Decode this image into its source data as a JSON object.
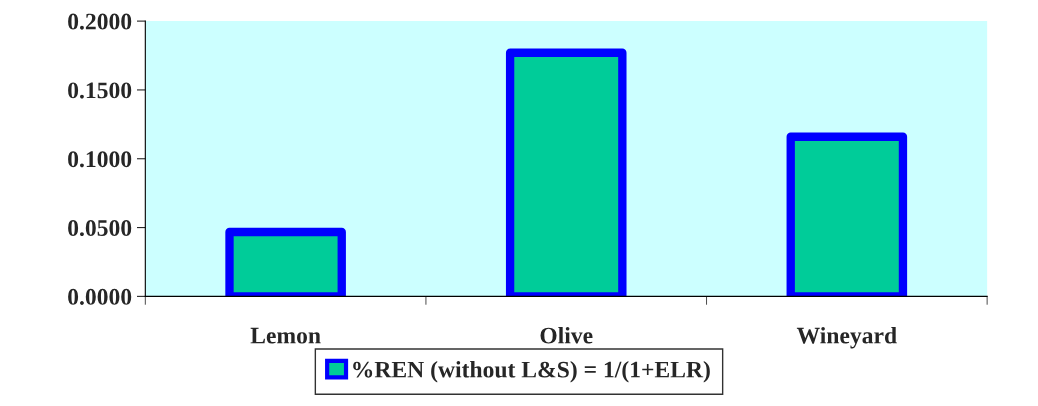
{
  "chart_data": {
    "type": "bar",
    "categories": [
      "Lemon",
      "Olive",
      "Wineyard"
    ],
    "series": [
      {
        "name": "%REN (without L&S) = 1/(1+ELR)",
        "color": "#00cc99",
        "values": [
          0.0468,
          0.177,
          0.116
        ]
      }
    ],
    "ylim": [
      0,
      0.2
    ],
    "yticks": [
      {
        "value": 0,
        "label": "0.0000"
      },
      {
        "value": 0.05,
        "label": "0.0500"
      },
      {
        "value": 0.1,
        "label": "0.1000"
      },
      {
        "value": 0.15,
        "label": "0.1500"
      },
      {
        "value": 0.2,
        "label": "0.2000"
      }
    ],
    "grid": false,
    "legend": "bottom"
  }
}
